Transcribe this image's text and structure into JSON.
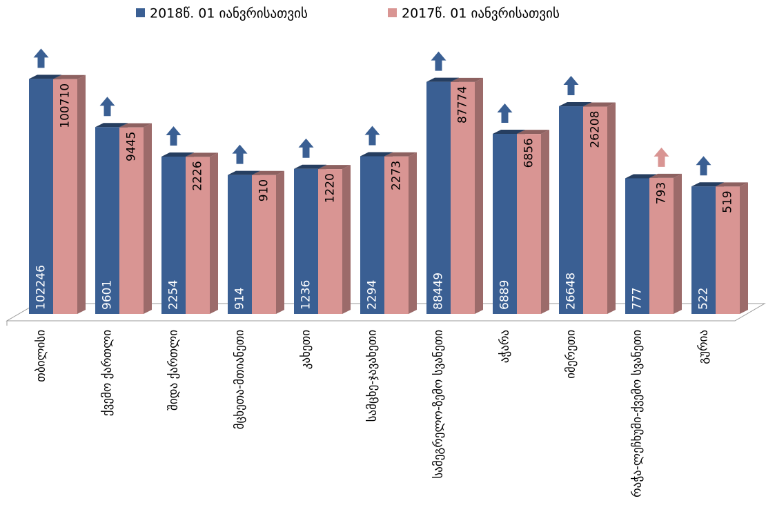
{
  "chart_data": {
    "type": "bar",
    "log_scale": true,
    "ylim": [
      1,
      1000000
    ],
    "categories": [
      "თბილისი",
      "ქვემო ქართლი",
      "შიდა ქართლი",
      "მცხეთა-მთიანეთი",
      "კახეთი",
      "სამცხე-ჯავახეთი",
      "სამეგრელო-ზემო სვანეთი",
      "აჭარა",
      "იმერეთი",
      "რაჭა-ლეჩხუმი-ქვემო სვანეთი",
      "გურია"
    ],
    "series": [
      {
        "name": "2018წ. 01 იანვრისათვის",
        "color": "#3a5f93",
        "values": [
          102246,
          9601,
          2254,
          914,
          1236,
          2294,
          88449,
          6889,
          26648,
          777,
          522
        ]
      },
      {
        "name": "2017წ. 01 იანვრისათვის",
        "color": "#d99593",
        "values": [
          100710,
          9445,
          2226,
          910,
          1220,
          2273,
          87774,
          6856,
          26208,
          793,
          519
        ]
      }
    ]
  }
}
